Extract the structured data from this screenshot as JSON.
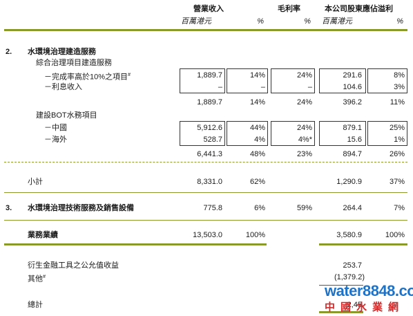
{
  "header": {
    "col_revenue": "營業收入",
    "col_margin": "毛利率",
    "col_profit": "本公司股東應佔溢利",
    "unit_hkd_m_1": "百萬港元",
    "unit_pct_1": "%",
    "unit_pct_2": "%",
    "unit_hkd_m_2": "百萬港元",
    "unit_pct_3": "%"
  },
  "section2": {
    "num": "2.",
    "title": "水環境治理建造服務",
    "sub1": "綜合治理項目建造服務",
    "row_a": {
      "label": "－完成率高於10%之項目",
      "sup": "#",
      "rev": "1,889.7",
      "rev_pct": "14%",
      "margin": "24%",
      "profit": "291.6",
      "profit_pct": "8%"
    },
    "row_b": {
      "label": "－利息收入",
      "rev": "–",
      "rev_pct": "–",
      "margin": "–",
      "profit": "104.6",
      "profit_pct": "3%"
    },
    "sub1_total": {
      "rev": "1,889.7",
      "rev_pct": "14%",
      "margin": "24%",
      "profit": "396.2",
      "profit_pct": "11%"
    },
    "sub2": "建設BOT水務項目",
    "row_c": {
      "label": "－中國",
      "rev": "5,912.6",
      "rev_pct": "44%",
      "margin": "24%",
      "profit": "879.1",
      "profit_pct": "25%"
    },
    "row_d": {
      "label": "－海外",
      "rev": "528.7",
      "rev_pct": "4%",
      "margin": "4%*",
      "profit": "15.6",
      "profit_pct": "1%"
    },
    "sub2_total": {
      "rev": "6,441.3",
      "rev_pct": "48%",
      "margin": "23%",
      "profit": "894.7",
      "profit_pct": "26%"
    },
    "subtotal": {
      "label": "小計",
      "rev": "8,331.0",
      "rev_pct": "62%",
      "profit": "1,290.9",
      "profit_pct": "37%"
    }
  },
  "section3": {
    "num": "3.",
    "title": "水環境治理技術服務及銷售設備",
    "rev": "775.8",
    "rev_pct": "6%",
    "margin": "59%",
    "profit": "264.4",
    "profit_pct": "7%"
  },
  "business": {
    "label": "業務業績",
    "rev": "13,503.0",
    "rev_pct": "100%",
    "profit": "3,580.9",
    "profit_pct": "100%"
  },
  "other": {
    "fv_label": "衍生金融工具之公允值收益",
    "fv_profit": "253.7",
    "other_label": "其他",
    "other_sup": "#",
    "other_profit": "(1,379.2)",
    "total_label": "總計",
    "total_profit": "2,45"
  },
  "watermark": {
    "line1": "water8848.com",
    "line2": "中國水業網"
  },
  "colors": {
    "accent": "#8a9a2a",
    "watermark_blue": "#1e73c8",
    "watermark_red": "#d12a2a"
  }
}
